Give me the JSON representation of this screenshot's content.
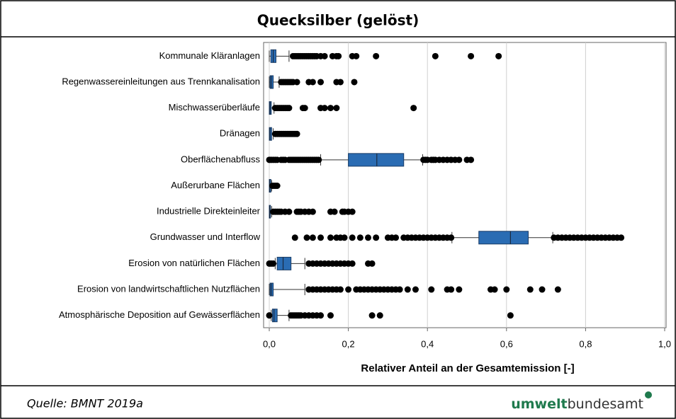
{
  "chart_data": {
    "type": "boxplot",
    "title": "Quecksilber (gelöst)",
    "x_label": "Relativer Anteil an der Gesamtemission [-]",
    "categories": [
      "Kommunale Kläranlagen",
      "Regenwassereinleitungen aus Trennkanalisation",
      "Mischwasserüberläufe",
      "Dränagen",
      "Oberflächenabfluss",
      "Außerurbane Flächen",
      "Industrielle Direkteinleiter",
      "Grundwasser und Interflow",
      "Erosion von natürlichen Flächen",
      "Erosion von landwirtschaftlichen Nutzflächen",
      "Atmosphärische Deposition auf Gewässerflächen"
    ],
    "color": "#2a6cb3",
    "boxes": [
      {
        "whislo": 0.0,
        "q1": 0.004,
        "med": 0.01,
        "q3": 0.017,
        "whishi": 0.05,
        "fliers": [
          0.06,
          0.065,
          0.07,
          0.075,
          0.08,
          0.085,
          0.09,
          0.095,
          0.1,
          0.105,
          0.11,
          0.115,
          0.12,
          0.13,
          0.14,
          0.16,
          0.17,
          0.175,
          0.21,
          0.22,
          0.27,
          0.42,
          0.51,
          0.58
        ]
      },
      {
        "whislo": 0.0,
        "q1": 0.002,
        "med": 0.005,
        "q3": 0.01,
        "whishi": 0.025,
        "fliers": [
          0.03,
          0.035,
          0.04,
          0.045,
          0.05,
          0.055,
          0.06,
          0.07,
          0.1,
          0.11,
          0.13,
          0.17,
          0.18,
          0.215
        ]
      },
      {
        "whislo": 0.0,
        "q1": 0.0,
        "med": 0.002,
        "q3": 0.005,
        "whishi": 0.012,
        "fliers": [
          0.015,
          0.02,
          0.025,
          0.03,
          0.035,
          0.04,
          0.045,
          0.05,
          0.085,
          0.09,
          0.13,
          0.14,
          0.155,
          0.17,
          0.365
        ]
      },
      {
        "whislo": 0.0,
        "q1": 0.0,
        "med": 0.002,
        "q3": 0.006,
        "whishi": 0.01,
        "fliers": [
          0.015,
          0.02,
          0.025,
          0.03,
          0.035,
          0.04,
          0.045,
          0.05,
          0.055,
          0.06,
          0.065,
          0.07
        ]
      },
      {
        "whislo": 0.13,
        "q1": 0.2,
        "med": 0.272,
        "q3": 0.34,
        "whishi": 0.388,
        "fliers": [
          0.0,
          0.005,
          0.01,
          0.015,
          0.02,
          0.03,
          0.035,
          0.04,
          0.05,
          0.055,
          0.06,
          0.065,
          0.07,
          0.075,
          0.08,
          0.085,
          0.09,
          0.095,
          0.1,
          0.105,
          0.11,
          0.115,
          0.12,
          0.125,
          0.39,
          0.395,
          0.4,
          0.41,
          0.415,
          0.42,
          0.43,
          0.44,
          0.45,
          0.46,
          0.47,
          0.48,
          0.5,
          0.51
        ]
      },
      {
        "whislo": 0.0,
        "q1": 0.0,
        "med": 0.001,
        "q3": 0.004,
        "whishi": 0.006,
        "fliers": [
          0.008,
          0.012,
          0.016,
          0.02
        ]
      },
      {
        "whislo": 0.0,
        "q1": 0.0,
        "med": 0.001,
        "q3": 0.003,
        "whishi": 0.006,
        "fliers": [
          0.01,
          0.015,
          0.02,
          0.025,
          0.03,
          0.04,
          0.05,
          0.07,
          0.075,
          0.08,
          0.09,
          0.1,
          0.11,
          0.155,
          0.165,
          0.185,
          0.19,
          0.2,
          0.21
        ]
      },
      {
        "whislo": 0.462,
        "q1": 0.53,
        "med": 0.61,
        "q3": 0.655,
        "whishi": 0.717,
        "fliers": [
          0.065,
          0.095,
          0.11,
          0.13,
          0.155,
          0.17,
          0.18,
          0.19,
          0.21,
          0.23,
          0.25,
          0.27,
          0.3,
          0.31,
          0.32,
          0.34,
          0.35,
          0.36,
          0.37,
          0.38,
          0.39,
          0.4,
          0.41,
          0.42,
          0.43,
          0.44,
          0.45,
          0.46,
          0.72,
          0.73,
          0.74,
          0.75,
          0.76,
          0.77,
          0.78,
          0.79,
          0.8,
          0.81,
          0.82,
          0.83,
          0.84,
          0.85,
          0.86,
          0.87,
          0.88,
          0.89
        ]
      },
      {
        "whislo": 0.015,
        "q1": 0.02,
        "med": 0.035,
        "q3": 0.055,
        "whishi": 0.09,
        "fliers": [
          0.0,
          0.005,
          0.01,
          0.1,
          0.11,
          0.12,
          0.13,
          0.14,
          0.15,
          0.16,
          0.17,
          0.18,
          0.19,
          0.2,
          0.21,
          0.25,
          0.26
        ]
      },
      {
        "whislo": 0.0,
        "q1": 0.002,
        "med": 0.005,
        "q3": 0.01,
        "whishi": 0.09,
        "fliers": [
          0.1,
          0.11,
          0.12,
          0.13,
          0.14,
          0.15,
          0.16,
          0.17,
          0.18,
          0.2,
          0.22,
          0.23,
          0.24,
          0.25,
          0.26,
          0.27,
          0.28,
          0.29,
          0.3,
          0.31,
          0.32,
          0.33,
          0.35,
          0.37,
          0.41,
          0.45,
          0.46,
          0.48,
          0.56,
          0.57,
          0.6,
          0.66,
          0.69,
          0.73
        ]
      },
      {
        "whislo": 0.005,
        "q1": 0.008,
        "med": 0.012,
        "q3": 0.02,
        "whishi": 0.05,
        "fliers": [
          0.0,
          0.055,
          0.06,
          0.065,
          0.07,
          0.075,
          0.08,
          0.09,
          0.1,
          0.11,
          0.12,
          0.13,
          0.155,
          0.26,
          0.28,
          0.61
        ]
      }
    ],
    "xlim": [
      0,
      1
    ],
    "xticks": [
      {
        "value": 0,
        "label": "0,0"
      },
      {
        "value": 0.2,
        "label": "0,2"
      },
      {
        "value": 0.4,
        "label": "0,4"
      },
      {
        "value": 0.6,
        "label": "0,6"
      },
      {
        "value": 0.8,
        "label": "0,8"
      },
      {
        "value": 1,
        "label": "1,0"
      }
    ],
    "grid": true
  },
  "footer": {
    "source": "Quelle: BMNT 2019a",
    "logo_bold": "umwelt",
    "logo_regular": "bundesamt"
  }
}
